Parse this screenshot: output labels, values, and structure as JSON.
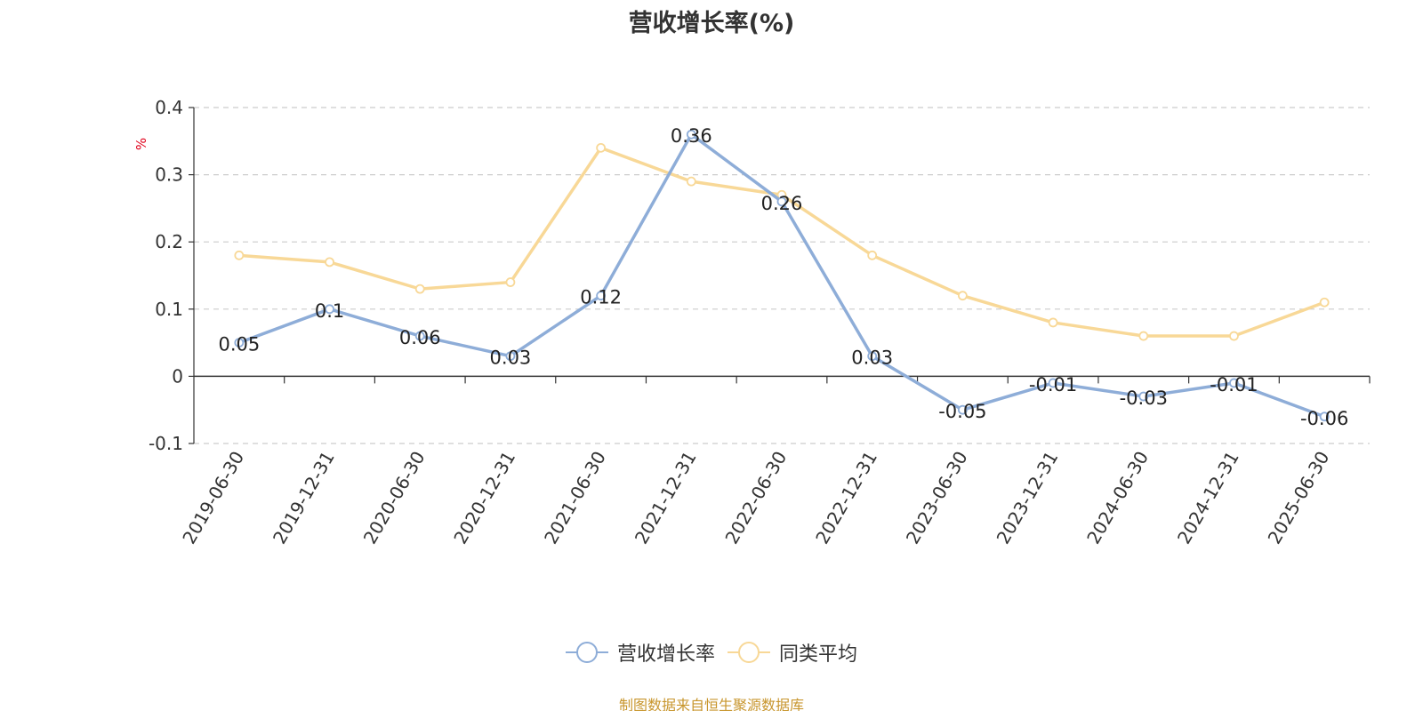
{
  "chart_data": {
    "type": "line",
    "title": "营收增长率(%)",
    "ylabel": "%",
    "xlabel": "",
    "categories": [
      "2019-06-30",
      "2019-12-31",
      "2020-06-30",
      "2020-12-31",
      "2021-06-30",
      "2021-12-31",
      "2022-06-30",
      "2022-12-31",
      "2023-06-30",
      "2023-12-31",
      "2024-06-30",
      "2024-12-31",
      "2025-06-30"
    ],
    "ylim": [
      -0.1,
      0.4
    ],
    "yticks": [
      -0.1,
      0,
      0.1,
      0.2,
      0.3,
      0.4
    ],
    "ytick_labels": [
      "-0.1",
      "0",
      "0.1",
      "0.2",
      "0.3",
      "0.4"
    ],
    "grid": true,
    "legend_position": "bottom",
    "series": [
      {
        "name": "营收增长率",
        "color": "#8eadd8",
        "values": [
          0.05,
          0.1,
          0.06,
          0.03,
          0.12,
          0.36,
          0.26,
          0.03,
          -0.05,
          -0.01,
          -0.03,
          -0.01,
          -0.06
        ],
        "labels": [
          "0.05",
          "0.1",
          "0.06",
          "0.03",
          "0.12",
          "0.36",
          "0.26",
          "0.03",
          "-0.05",
          "-0.01",
          "-0.03",
          "-0.01",
          "-0.06"
        ]
      },
      {
        "name": "同类平均",
        "color": "#f8d897",
        "values": [
          0.18,
          0.17,
          0.13,
          0.14,
          0.34,
          0.29,
          0.27,
          0.18,
          0.12,
          0.08,
          0.06,
          0.06,
          0.11
        ]
      }
    ]
  },
  "source_note": "制图数据来自恒生聚源数据库"
}
